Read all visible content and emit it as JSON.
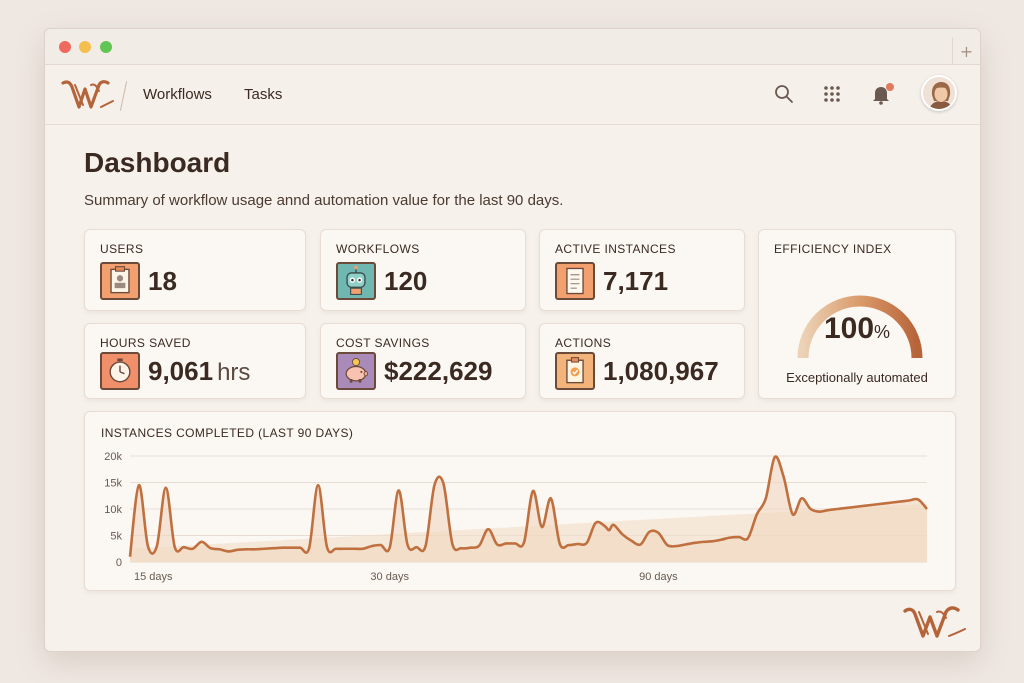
{
  "window": {
    "new_tab_label": "+"
  },
  "nav": {
    "items": [
      {
        "label": "Workflows"
      },
      {
        "label": "Tasks"
      }
    ]
  },
  "header": {
    "icons": [
      "search-icon",
      "apps-grid-icon",
      "bell-icon",
      "avatar"
    ],
    "notification_badge_color": "#e07a5f"
  },
  "page": {
    "title": "Dashboard",
    "subtitle": "Summary of workflow usage annd automation value for the last 90 days."
  },
  "stats": [
    {
      "label": "USERS",
      "value": "18",
      "unit": "",
      "icon": "id-badge-icon"
    },
    {
      "label": "WORKFLOWS",
      "value": "120",
      "unit": "",
      "icon": "robot-icon"
    },
    {
      "label": "ACTIVE INSTANCES",
      "value": "7,171",
      "unit": "",
      "icon": "document-icon"
    },
    {
      "label": "HOURS SAVED",
      "value": "9,061",
      "unit": "hrs",
      "icon": "clock-icon"
    },
    {
      "label": "COST SAVINGS",
      "value": "$222,629",
      "unit": "",
      "icon": "piggy-bank-icon"
    },
    {
      "label": "ACTIONS",
      "value": "1,080,967",
      "unit": "",
      "icon": "clipboard-check-icon"
    }
  ],
  "efficiency": {
    "label": "EFFICIENCY INDEX",
    "value": "100",
    "unit": "%",
    "fraction": 1.0,
    "caption": "Exceptionally automated"
  },
  "colors": {
    "accent": "#c0703f",
    "accent_light": "#e9c9a8",
    "background": "#f7f1ec",
    "card": "#fbf7f3"
  },
  "chart_data": {
    "type": "area",
    "title": "INSTANCES COMPLETED (LAST 90 DAYS)",
    "y_ticks": [
      "20k",
      "15k",
      "10k",
      "5k",
      "0"
    ],
    "ylim": [
      0,
      20000
    ],
    "x_tick_labels": [
      "15 days",
      "30 days",
      "90 days"
    ],
    "x_tick_positions": [
      1,
      30,
      60
    ],
    "x": [
      1,
      2,
      3,
      4,
      5,
      6,
      7,
      8,
      9,
      10,
      11,
      12,
      13,
      14,
      15,
      16,
      17,
      18,
      19,
      20,
      21,
      22,
      23,
      24,
      25,
      26,
      27,
      28,
      29,
      30,
      31,
      32,
      33,
      34,
      35,
      36,
      37,
      38,
      39,
      40,
      41,
      42,
      43,
      44,
      45,
      46,
      47,
      48,
      49,
      50,
      51,
      52,
      53,
      54,
      54.5,
      55,
      56,
      57,
      58,
      59,
      60,
      61,
      62,
      63,
      64,
      65,
      66,
      67,
      68,
      69,
      70,
      71,
      72,
      73,
      74,
      75,
      76,
      77,
      78,
      79,
      80,
      81,
      82,
      83,
      84,
      85,
      86,
      87,
      88,
      89,
      90
    ],
    "series": [
      {
        "values": [
          1000,
          14500,
          3000,
          3000,
          14000,
          2800,
          2800,
          2500,
          3800,
          2600,
          2400,
          2000,
          2300,
          2400,
          2400,
          2500,
          2600,
          2700,
          2700,
          2700,
          2600,
          14500,
          2800,
          2500,
          2500,
          2500,
          2500,
          3000,
          3200,
          2700,
          13500,
          3200,
          2800,
          3000,
          14500,
          14800,
          3400,
          2600,
          2700,
          3100,
          6200,
          3300,
          3500,
          3500,
          3700,
          13400,
          6600,
          12000,
          3400,
          3200,
          3400,
          3600,
          7400,
          6800,
          6000,
          7000,
          5200,
          4000,
          3300,
          5700,
          5500,
          3200,
          3000,
          3300,
          3600,
          3800,
          3900,
          4200,
          4600,
          4700,
          4500,
          9000,
          12000,
          19800,
          16000,
          9000,
          12000,
          10000,
          9500,
          9800,
          10000,
          10200,
          10400,
          10600,
          10800,
          11000,
          11200,
          11400,
          11600,
          11800,
          10000
        ]
      }
    ],
    "grid": true
  }
}
